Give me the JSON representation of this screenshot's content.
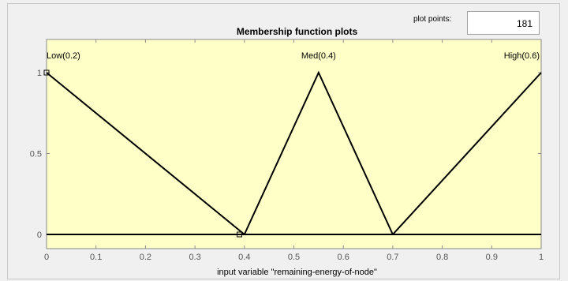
{
  "plot_points": {
    "label": "plot points:",
    "value": "181"
  },
  "colors": {
    "plot_background": "#ffffc8",
    "curve": "#000000",
    "panel": "#f0f0f0"
  },
  "chart_data": {
    "type": "line",
    "title": "Membership function plots",
    "xlabel": "input variable \"remaining-energy-of-node\"",
    "ylabel": "",
    "xlim": [
      0,
      1
    ],
    "ylim": [
      0,
      1
    ],
    "x_ticks": [
      "0",
      "0.1",
      "0.2",
      "0.3",
      "0.4",
      "0.5",
      "0.6",
      "0.7",
      "0.8",
      "0.9",
      "1"
    ],
    "y_ticks": [
      "0",
      "0.5",
      "1"
    ],
    "grid": false,
    "series": [
      {
        "name": "Low(0.2)",
        "x": [
          0,
          0.4
        ],
        "y": [
          1,
          0
        ]
      },
      {
        "name": "Med(0.4)",
        "x": [
          0.4,
          0.55,
          0.7
        ],
        "y": [
          0,
          1,
          0
        ]
      },
      {
        "name": "High(0.6)",
        "x": [
          0.7,
          1
        ],
        "y": [
          0,
          1
        ]
      }
    ],
    "markers": [
      {
        "x": 0,
        "y": 1
      },
      {
        "x": 0.39,
        "y": 0
      }
    ]
  }
}
